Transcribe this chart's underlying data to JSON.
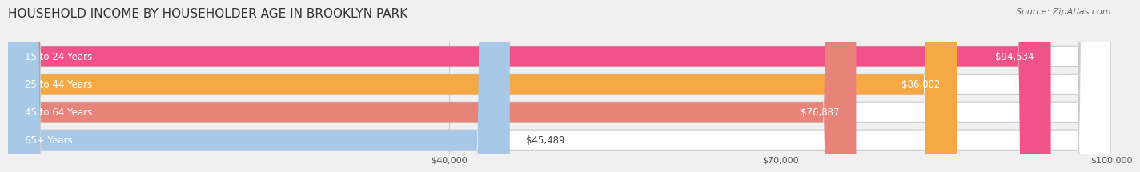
{
  "title": "HOUSEHOLD INCOME BY HOUSEHOLDER AGE IN BROOKLYN PARK",
  "source": "Source: ZipAtlas.com",
  "categories": [
    "15 to 24 Years",
    "25 to 44 Years",
    "45 to 64 Years",
    "65+ Years"
  ],
  "values": [
    94534,
    86002,
    76887,
    45489
  ],
  "labels": [
    "$94,534",
    "$86,002",
    "$76,887",
    "$45,489"
  ],
  "bar_colors": [
    "#f0538a",
    "#f5a944",
    "#e8837a",
    "#a8c8e8"
  ],
  "bar_edge_colors": [
    "#e0306a",
    "#e09030",
    "#d06060",
    "#88aad0"
  ],
  "background_color": "#f0f0f0",
  "bar_bg_color": "#e8e8e8",
  "xmin": 0,
  "xmax": 100000,
  "xticks": [
    40000,
    70000,
    100000
  ],
  "xticklabels": [
    "$40,000",
    "$70,000",
    "$100,000"
  ],
  "title_fontsize": 11,
  "label_fontsize": 8.5,
  "tick_fontsize": 8,
  "source_fontsize": 8
}
